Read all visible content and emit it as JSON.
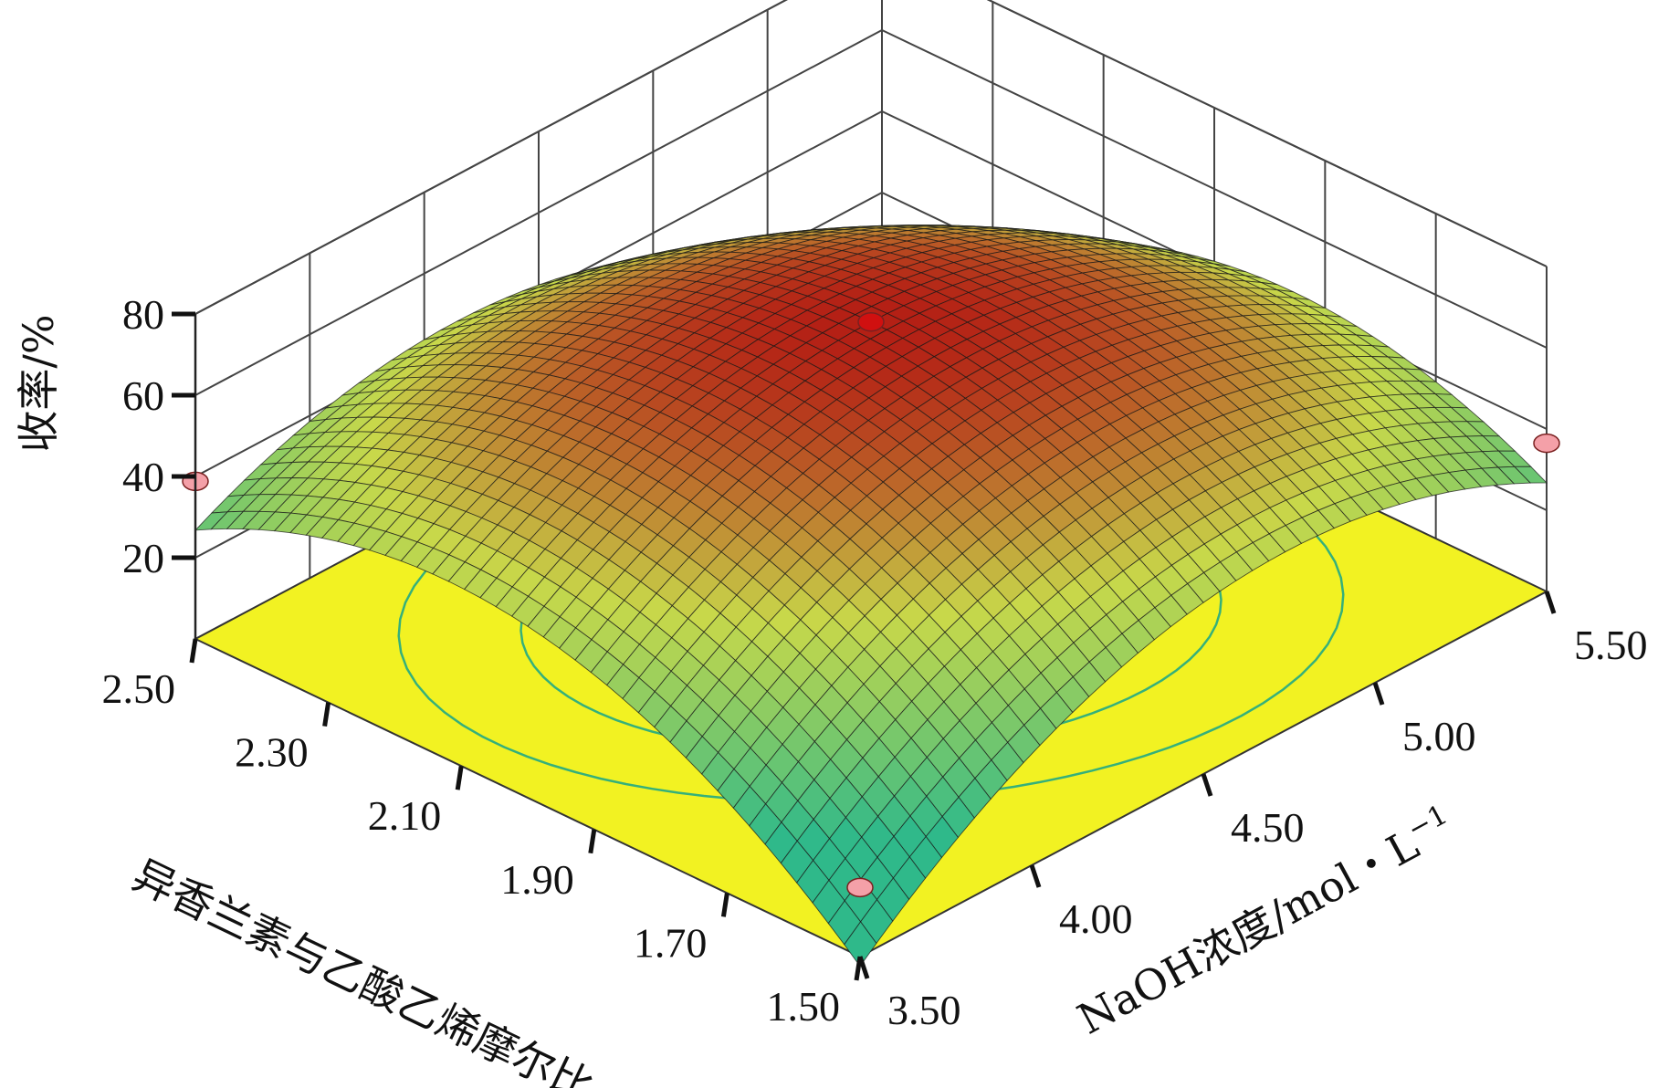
{
  "chart_data": {
    "type": "surface",
    "zlabel": "收率/%",
    "zlim": [
      0,
      80
    ],
    "z_ticks": [
      "20",
      "40",
      "60",
      "80"
    ],
    "xlabel": "NaOH浓度/mol・L",
    "xlabel_superscript": "−1",
    "xlim": [
      3.5,
      5.5
    ],
    "x_ticks": [
      "3.50",
      "4.00",
      "4.50",
      "5.00",
      "5.50"
    ],
    "ylabel": "异香兰素与乙酸乙烯摩尔比",
    "ylim": [
      1.5,
      2.5
    ],
    "y_ticks": [
      "1.50",
      "1.70",
      "1.90",
      "2.10",
      "2.30",
      "2.50"
    ],
    "surface_model": {
      "peak_x": 4.5,
      "peak_y": 2.0,
      "peak_z": 72.2,
      "a": 30.0,
      "b": 30.0,
      "c": -26.5
    },
    "design_points": [
      {
        "x": 4.5,
        "y": 2.0,
        "z": 72.2,
        "role": "center"
      },
      {
        "x": 3.5,
        "y": 2.5,
        "z": 38.8,
        "role": "corner"
      },
      {
        "x": 5.5,
        "y": 1.5,
        "z": 36.5,
        "role": "corner"
      },
      {
        "x": 3.5,
        "y": 1.5,
        "z": 17.0,
        "role": "corner"
      }
    ],
    "contour_levels": [
      50,
      60
    ],
    "colors": {
      "surface_low": "#2fb98a",
      "surface_mid": "#c8d84a",
      "surface_high": "#b42015",
      "floor": "#f2f222",
      "contour": "#35b07a",
      "point_center": "#d01010",
      "point_other": "#f4a0a8",
      "grid": "#444444"
    },
    "grid": true
  }
}
